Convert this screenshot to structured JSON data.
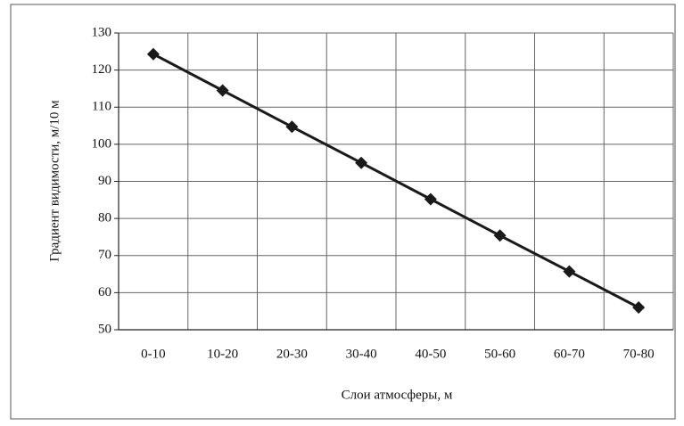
{
  "chart_data": {
    "type": "line",
    "xlabel": "Слои атмосферы, м",
    "ylabel": "Градиент видимости, м/10 м",
    "categories": [
      "0-10",
      "10-20",
      "20-30",
      "30-40",
      "40-50",
      "50-60",
      "60-70",
      "70-80"
    ],
    "series": [
      {
        "name": "Градиент видимости",
        "color": "#1a1a1a",
        "values": [
          124.3,
          114.5,
          104.7,
          95,
          85.2,
          75.4,
          65.7,
          56
        ]
      }
    ],
    "ylim": [
      50,
      130
    ],
    "yticks": [
      50,
      60,
      70,
      80,
      90,
      100,
      110,
      120,
      130
    ],
    "grid": true
  }
}
